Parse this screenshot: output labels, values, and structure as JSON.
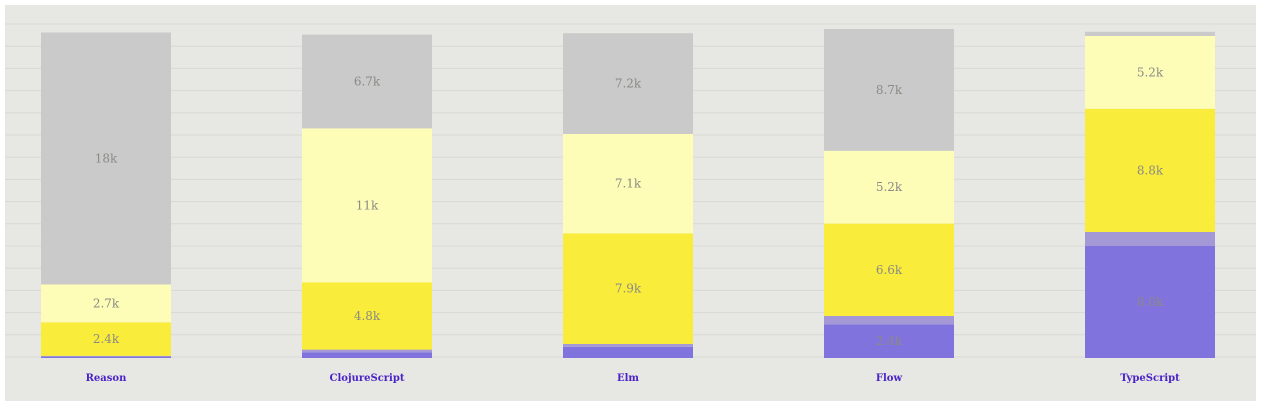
{
  "chart_data": {
    "type": "bar",
    "stacked": true,
    "categories": [
      "Reason",
      "ClojureScript",
      "Elm",
      "Flow",
      "TypeScript"
    ],
    "series": [
      {
        "values": [
          0.1,
          0.4,
          0.8,
          2.4,
          8.0
        ],
        "color": "#8073de"
      },
      {
        "values": [
          0.05,
          0.2,
          0.2,
          0.6,
          1.0
        ],
        "color": "#a499d6"
      },
      {
        "values": [
          2.4,
          4.8,
          7.9,
          6.6,
          8.8
        ],
        "color": "#f9ec3a"
      },
      {
        "values": [
          2.7,
          11.0,
          7.1,
          5.2,
          5.2
        ],
        "color": "#fdfdb7"
      },
      {
        "values": [
          18.0,
          6.7,
          7.2,
          8.7,
          0.3
        ],
        "color": "#cacaca"
      }
    ],
    "segment_labels": [
      [
        "",
        "",
        "2.4k",
        "2.7k",
        "18k"
      ],
      [
        "",
        "",
        "4.8k",
        "11k",
        "6.7k"
      ],
      [
        "",
        "",
        "7.9k",
        "7.1k",
        "7.2k"
      ],
      [
        "2.4k",
        "",
        "6.6k",
        "5.2k",
        "8.7k"
      ],
      [
        "8.0k",
        "",
        "8.8k",
        "5.2k",
        ""
      ]
    ],
    "ylim": [
      0,
      23.5
    ],
    "grid": true,
    "legend": "none",
    "title": "",
    "xlabel": "",
    "ylabel": ""
  }
}
